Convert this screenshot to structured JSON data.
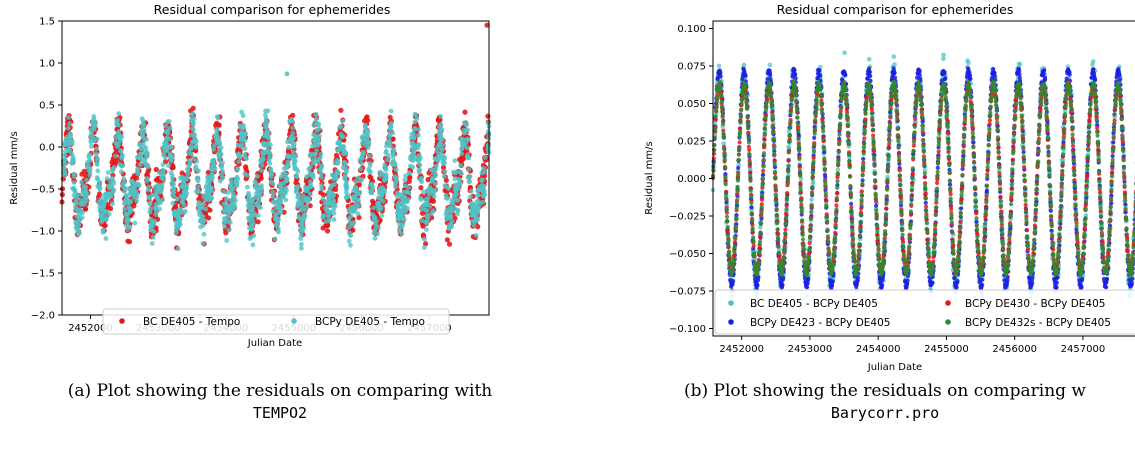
{
  "captions": {
    "a_text": "(a) Plot showing the residuals on comparing with",
    "a_code": "TEMPO2",
    "b_text": "(b) Plot showing the residuals on comparing w",
    "b_code": "Barycorr.pro"
  },
  "chart_data": [
    {
      "type": "scatter",
      "title": "Residual comparison for ephemerides",
      "xlabel": "Julian Date",
      "ylabel": "Residual mm/s",
      "xlim": [
        2451580,
        2457880
      ],
      "ylim": [
        -2.0,
        1.5
      ],
      "xticks": [
        2452000,
        2453000,
        2454000,
        2455000,
        2456000,
        2457000
      ],
      "yticks": [
        -2.0,
        -1.5,
        -1.0,
        -0.5,
        0.0,
        0.5,
        1.0,
        1.5
      ],
      "ytick_labels": [
        "−2.0",
        "−1.5",
        "−1.0",
        "−0.5",
        "0.0",
        "0.5",
        "1.0",
        "1.5"
      ],
      "grid": false,
      "legend": "bottom-center",
      "period_days": 365.25,
      "series": [
        {
          "name": "BC DE405 - Tempo",
          "color": "#e31a1c",
          "center": -0.5,
          "amplitude": 0.75,
          "outlier_max": 1.45
        },
        {
          "name": "BCPy DE405  - Tempo",
          "color": "#4fc3c7",
          "center": -0.5,
          "amplitude": 0.75,
          "outlier_max": 0.87
        }
      ]
    },
    {
      "type": "scatter",
      "title": "Residual comparison for ephemerides",
      "xlabel": "Julian Date",
      "ylabel": "Residual mm/s",
      "xlim": [
        2451580,
        2457880
      ],
      "ylim": [
        -0.105,
        0.105
      ],
      "xticks": [
        2452000,
        2453000,
        2454000,
        2455000,
        2456000,
        2457000
      ],
      "yticks": [
        -0.1,
        -0.075,
        -0.05,
        -0.025,
        0.0,
        0.025,
        0.05,
        0.075,
        0.1
      ],
      "ytick_labels": [
        "−0.100",
        "−0.075",
        "−0.050",
        "−0.025",
        "0.000",
        "0.025",
        "0.050",
        "0.075",
        "0.100"
      ],
      "grid": false,
      "legend": "bottom",
      "period_days": 365.25,
      "series": [
        {
          "name": "BC DE405 - BCPy DE405",
          "color": "#4fc3c7",
          "amplitude": 0.08
        },
        {
          "name": "BCPy DE430 - BCPy DE405",
          "color": "#e31a1c",
          "amplitude": 0.062
        },
        {
          "name": "BCPy DE423 - BCPy DE405",
          "color": "#1f1fe0",
          "amplitude": 0.072
        },
        {
          "name": "BCPy DE432s - BCPy DE405",
          "color": "#2e8b2e",
          "amplitude": 0.063
        }
      ]
    }
  ]
}
